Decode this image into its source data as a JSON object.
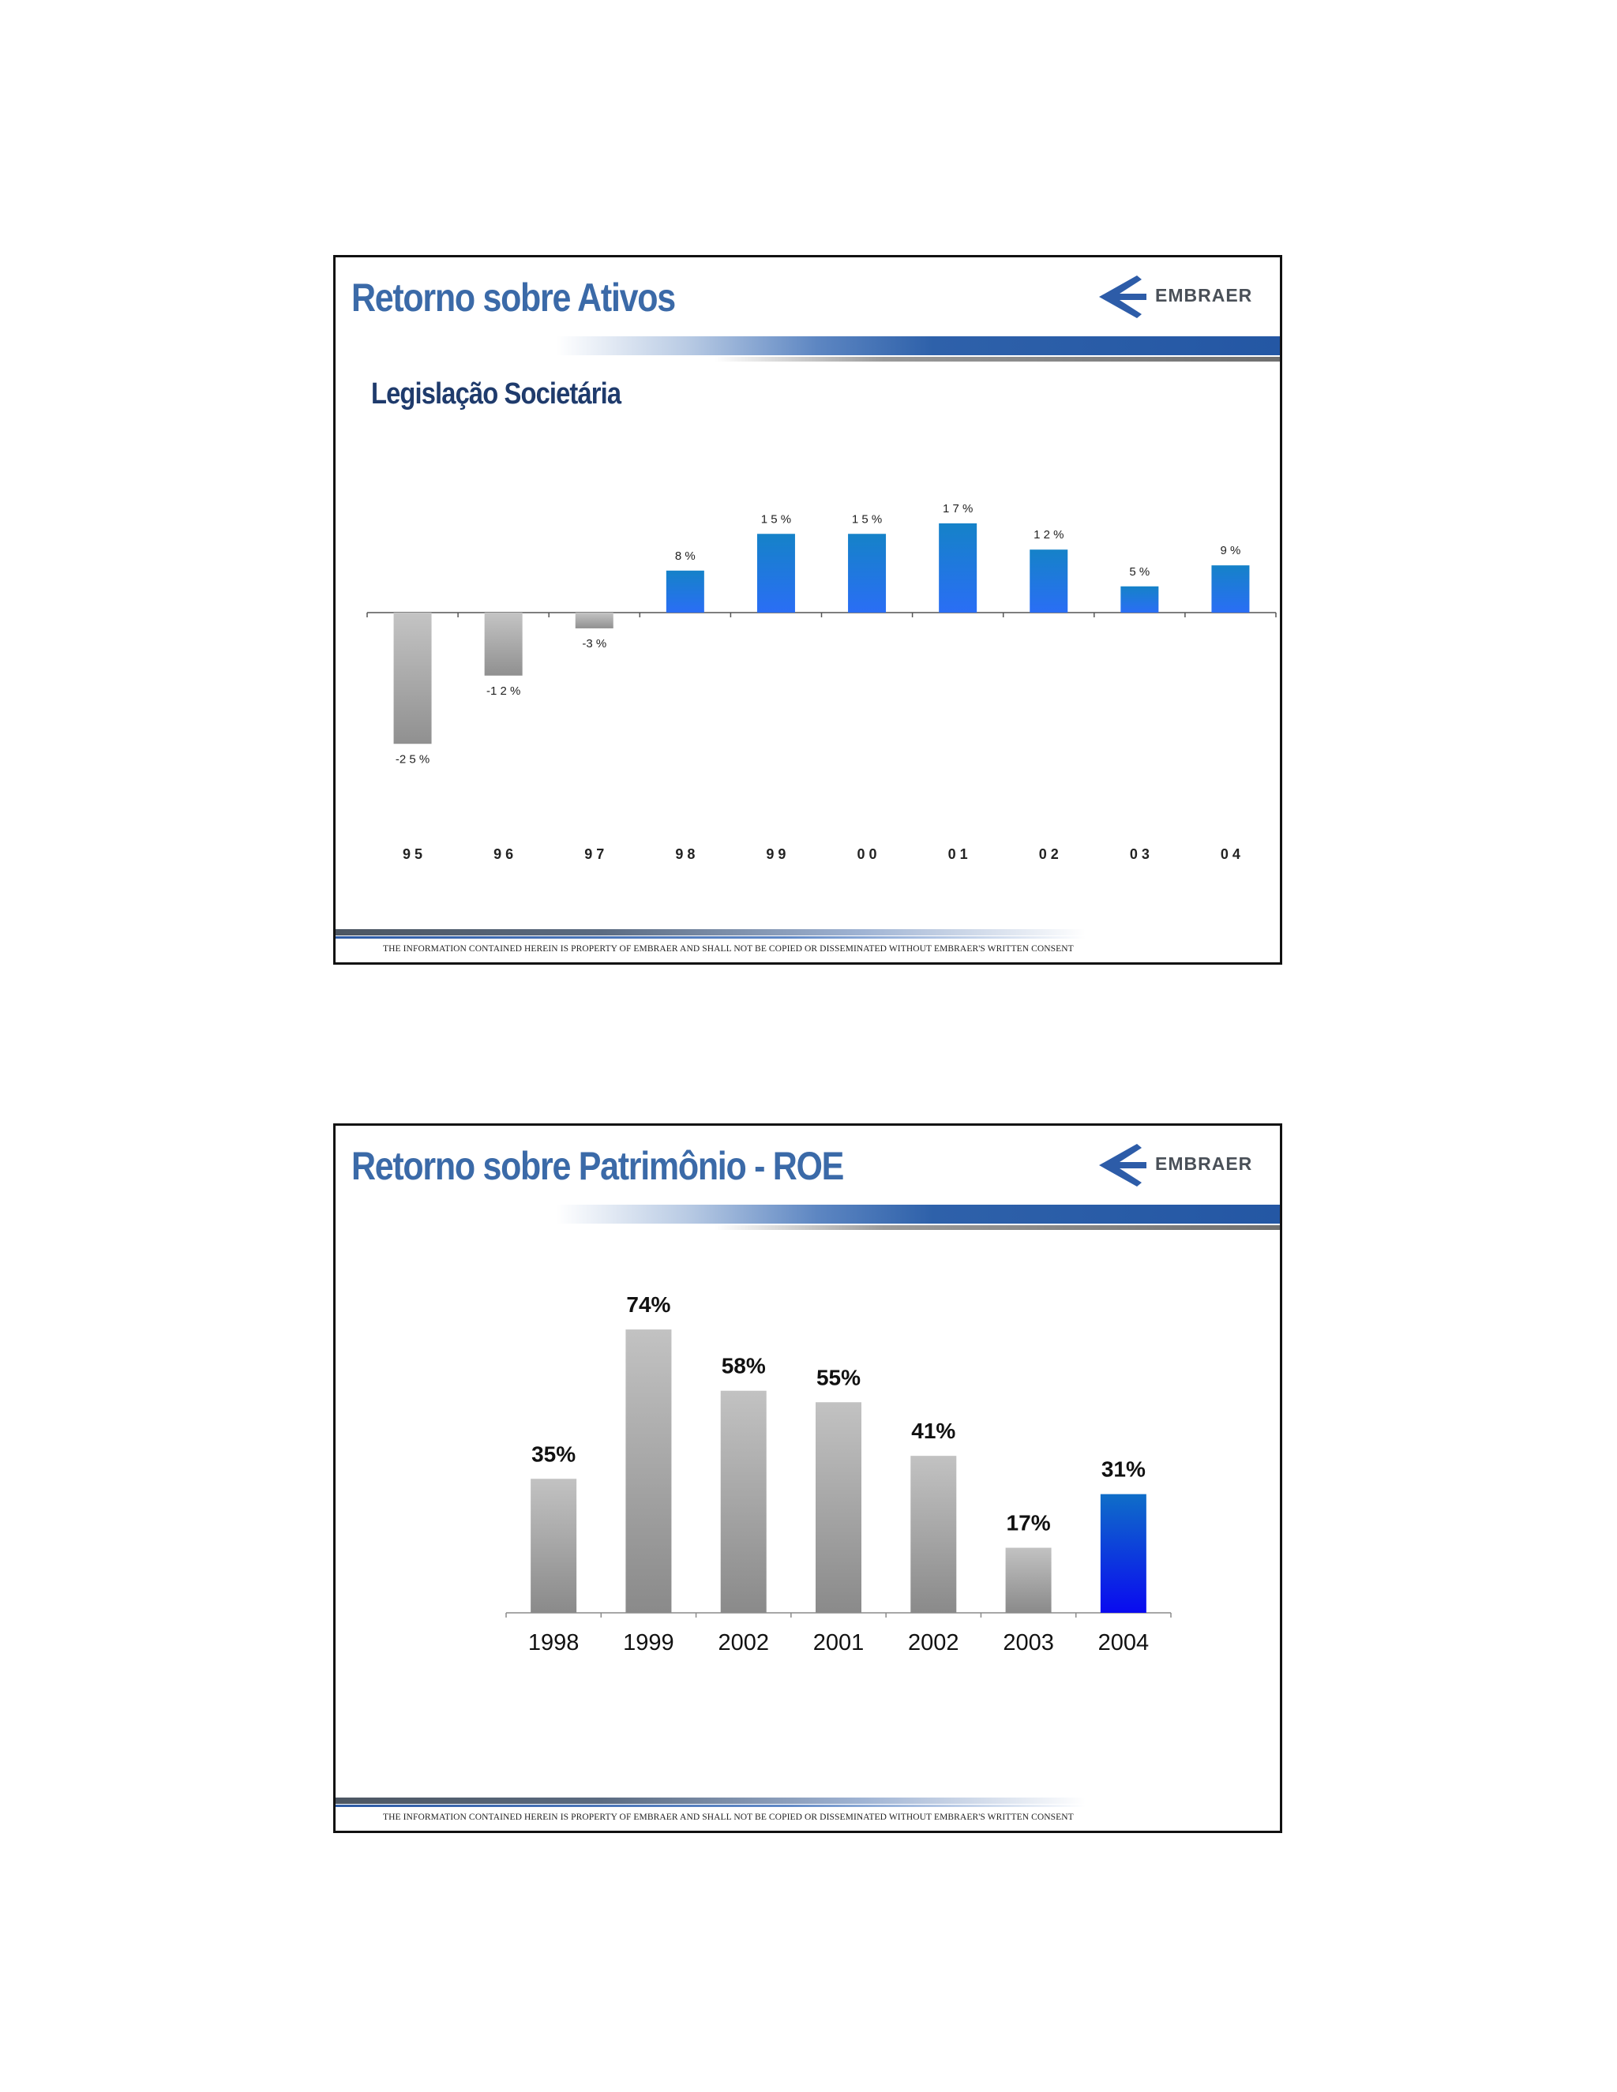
{
  "slides": [
    {
      "title": "Retorno sobre Ativos",
      "subtitle": "Legislação Societária",
      "logo_text": "EMBRAER",
      "logo_icon": "embraer-arrow-icon",
      "footer": "THE INFORMATION CONTAINED HEREIN IS PROPERTY OF EMBRAER AND SHALL NOT BE COPIED OR DISSEMINATED WITHOUT EMBRAER'S WRITTEN CONSENT"
    },
    {
      "title": "Retorno sobre Patrimônio - ROE",
      "logo_text": "EMBRAER",
      "logo_icon": "embraer-arrow-icon",
      "footer": "THE INFORMATION CONTAINED HEREIN IS PROPERTY OF EMBRAER AND SHALL NOT BE COPIED OR DISSEMINATED WITHOUT EMBRAER'S WRITTEN CONSENT"
    }
  ],
  "colors": {
    "title": "#3b6aa8",
    "subtitle": "#1f3b6c",
    "positive_bar_top": "#1582c8",
    "positive_bar_bottom": "#2a6ef5",
    "negative_bar_top": "#c4c4c4",
    "negative_bar_bottom": "#909090",
    "highlight_bar_top": "#0f6ec8",
    "highlight_bar_bottom": "#0a0af0"
  },
  "chart_data": [
    {
      "type": "bar",
      "title": "Retorno sobre Ativos",
      "subtitle": "Legislação Societária",
      "categories": [
        "9 5",
        "9 6",
        "9 7",
        "9 8",
        "9 9",
        "0 0",
        "0 1",
        "0 2",
        "0 3",
        "0 4"
      ],
      "values": [
        -25,
        -12,
        -3,
        8,
        15,
        15,
        17,
        12,
        5,
        9
      ],
      "labels": [
        "-2 5 %",
        "-1 2 %",
        "-3 %",
        "8 %",
        "1 5 %",
        "1 5 %",
        "1 7 %",
        "1 2 %",
        "5 %",
        "9 %"
      ],
      "ylim": [
        -25,
        17
      ],
      "grid": false,
      "legend": "none"
    },
    {
      "type": "bar",
      "title": "Retorno sobre Patrimônio - ROE",
      "categories": [
        "1998",
        "1999",
        "2002",
        "2001",
        "2002",
        "2003",
        "2004"
      ],
      "values": [
        35,
        74,
        58,
        55,
        41,
        17,
        31
      ],
      "labels": [
        "35%",
        "74%",
        "58%",
        "55%",
        "41%",
        "17%",
        "31%"
      ],
      "highlight": "2004",
      "ylim": [
        0,
        74
      ],
      "grid": false,
      "legend": "none"
    }
  ]
}
